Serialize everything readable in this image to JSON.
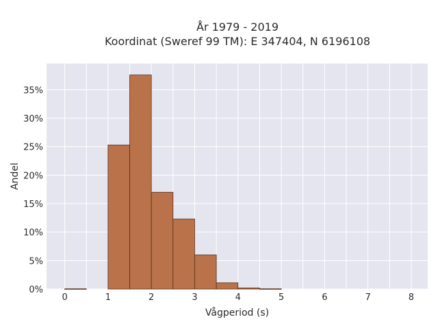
{
  "chart_data": {
    "type": "bar",
    "title_lines": [
      "År 1979 - 2019",
      "Koordinat (Sweref 99 TM): E 347404, N 6196108"
    ],
    "xlabel": "Vågperiod (s)",
    "ylabel": "Andel",
    "bin_width": 0.5,
    "bins": [
      {
        "x0": 0.0,
        "x1": 0.5,
        "value": 0.05
      },
      {
        "x0": 0.5,
        "x1": 1.0,
        "value": 0.0
      },
      {
        "x0": 1.0,
        "x1": 1.5,
        "value": 25.3
      },
      {
        "x0": 1.5,
        "x1": 2.0,
        "value": 37.6
      },
      {
        "x0": 2.0,
        "x1": 2.5,
        "value": 17.0
      },
      {
        "x0": 2.5,
        "x1": 3.0,
        "value": 12.3
      },
      {
        "x0": 3.0,
        "x1": 3.5,
        "value": 6.0
      },
      {
        "x0": 3.5,
        "x1": 4.0,
        "value": 1.1
      },
      {
        "x0": 4.0,
        "x1": 4.5,
        "value": 0.2
      },
      {
        "x0": 4.5,
        "x1": 5.0,
        "value": 0.05
      }
    ],
    "xticks": [
      0,
      1,
      2,
      3,
      4,
      5,
      6,
      7,
      8
    ],
    "xtick_labels": [
      "0",
      "1",
      "2",
      "3",
      "4",
      "5",
      "6",
      "7",
      "8"
    ],
    "yticks": [
      0,
      5,
      10,
      15,
      20,
      25,
      30,
      35
    ],
    "ytick_labels": [
      "0%",
      "5%",
      "10%",
      "15%",
      "20%",
      "25%",
      "30%",
      "35%"
    ],
    "xlim": [
      -0.42,
      8.38
    ],
    "ylim": [
      0,
      39.6
    ],
    "grid": true,
    "colors": {
      "bar_fill": "#b9724a",
      "bar_edge": "#5a2f1c",
      "plot_background": "#e5e5ef",
      "grid": "#ffffff"
    }
  }
}
